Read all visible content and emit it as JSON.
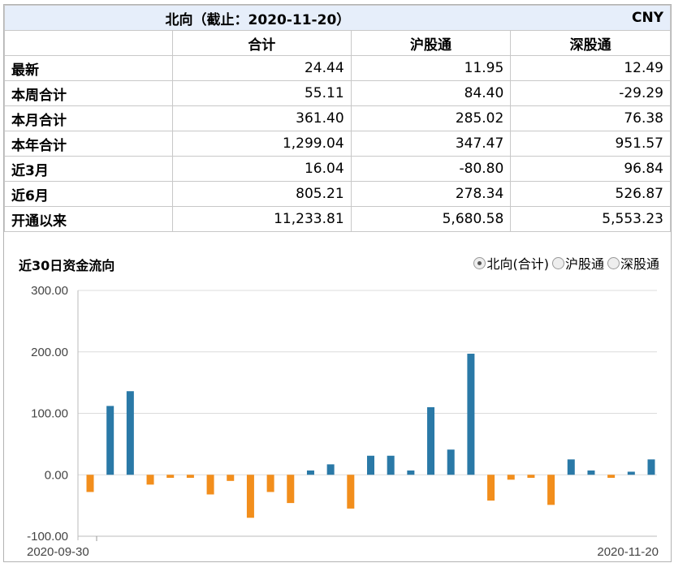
{
  "header": {
    "title": "北向（截止：2020-11-20）",
    "currency": "CNY"
  },
  "columns": [
    "合计",
    "沪股通",
    "深股通"
  ],
  "rows": [
    {
      "label": "最新",
      "values": [
        "24.44",
        "11.95",
        "12.49"
      ]
    },
    {
      "label": "本周合计",
      "values": [
        "55.11",
        "84.40",
        "-29.29"
      ]
    },
    {
      "label": "本月合计",
      "values": [
        "361.40",
        "285.02",
        "76.38"
      ]
    },
    {
      "label": "本年合计",
      "values": [
        "1,299.04",
        "347.47",
        "951.57"
      ]
    },
    {
      "label": "近3月",
      "values": [
        "16.04",
        "-80.80",
        "96.84"
      ]
    },
    {
      "label": "近6月",
      "values": [
        "805.21",
        "278.34",
        "526.87"
      ]
    },
    {
      "label": "开通以来",
      "values": [
        "11,233.81",
        "5,680.58",
        "5,553.23"
      ]
    }
  ],
  "chart_title": "近30日资金流向",
  "radio_options": [
    {
      "label": "北向(合计)",
      "selected": true
    },
    {
      "label": "沪股通",
      "selected": false
    },
    {
      "label": "深股通",
      "selected": false
    }
  ],
  "colors": {
    "positive": "#2a79a7",
    "negative": "#f28e1c",
    "grid": "#dcdcdc",
    "header_bg": "#e6eefa"
  },
  "chart_data": {
    "type": "bar",
    "title": "",
    "xlabel": "",
    "ylabel": "",
    "ylim": [
      -100,
      300
    ],
    "yticks": [
      "300.00",
      "200.00",
      "100.00",
      "0.00",
      "-100.00"
    ],
    "ytick_values": [
      300,
      200,
      100,
      0,
      -100
    ],
    "x_start_label": "2020-09-30",
    "x_end_label": "2020-11-20",
    "values": [
      -28,
      112,
      136,
      -16,
      -5,
      -5,
      -32,
      -10,
      -70,
      -28,
      -46,
      7,
      17,
      -55,
      31,
      31,
      7,
      110,
      41,
      197,
      -42,
      -8,
      -5,
      -49,
      25,
      7,
      -5,
      5,
      25
    ],
    "grid": true
  }
}
